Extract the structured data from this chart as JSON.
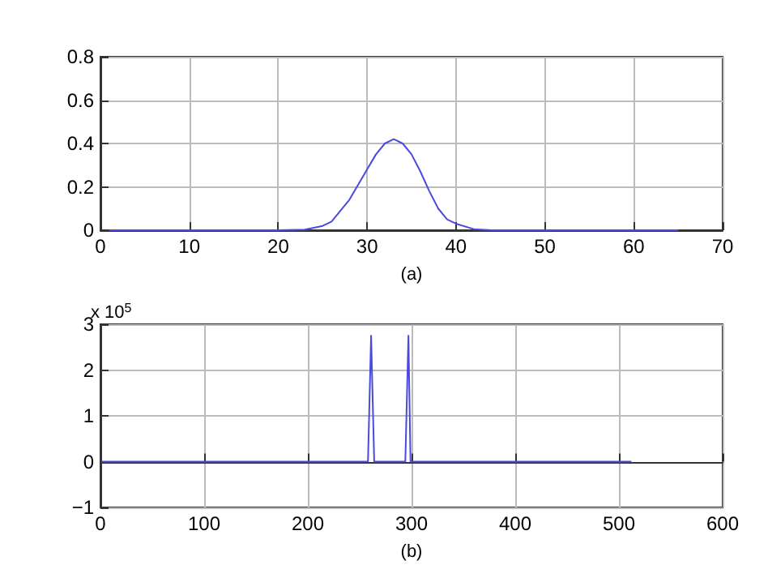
{
  "chart_data": [
    {
      "type": "line",
      "xlabel": "(a)",
      "xlim": [
        0,
        70
      ],
      "xticks": [
        0,
        10,
        20,
        30,
        40,
        50,
        60,
        70
      ],
      "ylim": [
        0,
        0.8
      ],
      "yticks": [
        0,
        0.2,
        0.4,
        0.6,
        0.8
      ],
      "grid": true,
      "marker": "none",
      "line_style": "solid",
      "series": [
        {
          "color": "#4a4ae0",
          "x": [
            1,
            10,
            20,
            23,
            25,
            26,
            28,
            30,
            31,
            32,
            33,
            34,
            35,
            36,
            37,
            38,
            39,
            40,
            42,
            44,
            55,
            65
          ],
          "values": [
            0,
            0,
            0,
            0.003,
            0.02,
            0.04,
            0.14,
            0.28,
            0.35,
            0.4,
            0.42,
            0.4,
            0.35,
            0.27,
            0.18,
            0.1,
            0.05,
            0.03,
            0.005,
            0,
            0,
            0
          ]
        }
      ]
    },
    {
      "type": "line",
      "xlabel": "(b)",
      "xlim": [
        0,
        600
      ],
      "xticks": [
        0,
        100,
        200,
        300,
        400,
        500,
        600
      ],
      "ylim": [
        -1,
        3
      ],
      "yticks": [
        -1,
        0,
        1,
        2,
        3
      ],
      "grid": true,
      "marker": "none",
      "line_style": "solid",
      "annotations": [
        "x 10$^{5}$"
      ],
      "series": [
        {
          "color": "#4a4ae0",
          "x": [
            1,
            100,
            200,
            258,
            261,
            264,
            280,
            294,
            297,
            299,
            400,
            512
          ],
          "values": [
            0,
            0,
            0,
            0,
            2.75,
            0,
            0,
            0,
            2.75,
            0,
            0,
            0
          ]
        }
      ]
    }
  ]
}
